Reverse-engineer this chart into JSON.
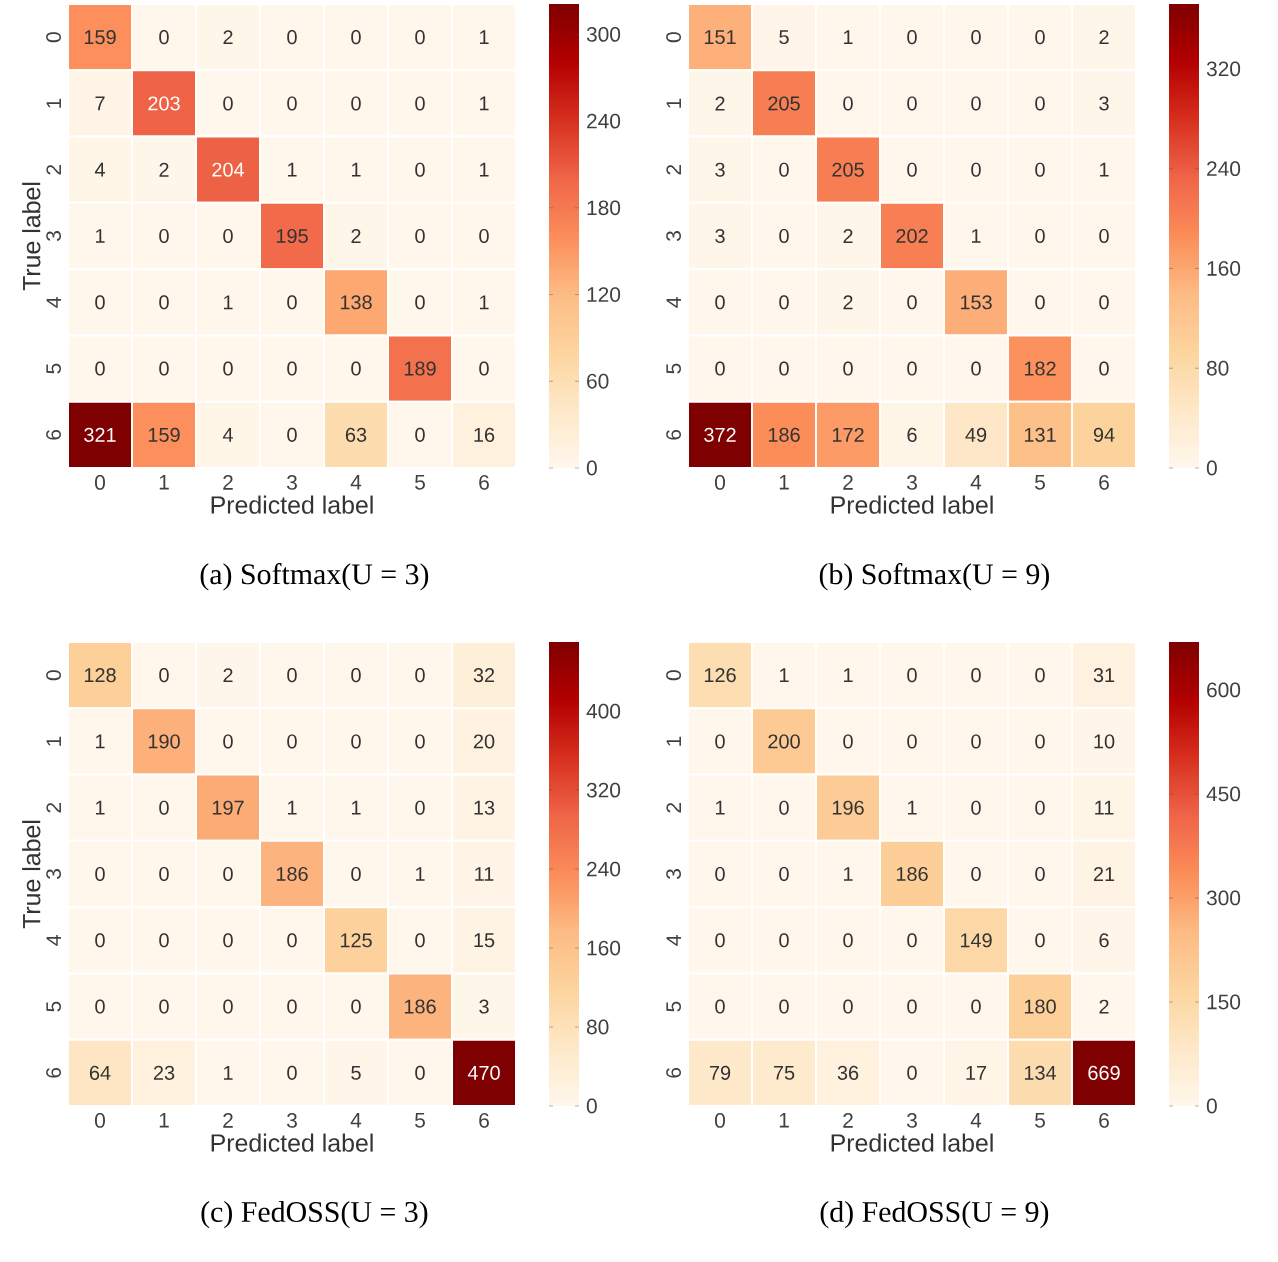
{
  "chart_data": [
    {
      "type": "heatmap",
      "title": "(a)  Softmax(U = 3)",
      "xlabel": "Predicted label",
      "ylabel": "True label",
      "categories": [
        "0",
        "1",
        "2",
        "3",
        "4",
        "5",
        "6"
      ],
      "y_categories": [
        "0",
        "1",
        "2",
        "3",
        "4",
        "5",
        "6"
      ],
      "cells": [
        [
          159,
          0,
          2,
          0,
          0,
          0,
          1
        ],
        [
          7,
          203,
          0,
          0,
          0,
          0,
          1
        ],
        [
          4,
          2,
          204,
          1,
          1,
          0,
          1
        ],
        [
          1,
          0,
          0,
          195,
          2,
          0,
          0
        ],
        [
          0,
          0,
          1,
          0,
          138,
          0,
          1
        ],
        [
          0,
          0,
          0,
          0,
          0,
          189,
          0
        ],
        [
          321,
          159,
          4,
          0,
          63,
          0,
          16
        ]
      ],
      "clim": [
        0,
        321
      ],
      "cticks": [
        0,
        60,
        120,
        180,
        240,
        300
      ],
      "data_labels": true
    },
    {
      "type": "heatmap",
      "title": "(b)  Softmax(U = 9)",
      "xlabel": "Predicted label",
      "categories": [
        "0",
        "1",
        "2",
        "3",
        "4",
        "5",
        "6"
      ],
      "y_categories": [
        "0",
        "1",
        "2",
        "3",
        "4",
        "5",
        "6"
      ],
      "cells": [
        [
          151,
          5,
          1,
          0,
          0,
          0,
          2
        ],
        [
          2,
          205,
          0,
          0,
          0,
          0,
          3
        ],
        [
          3,
          0,
          205,
          0,
          0,
          0,
          1
        ],
        [
          3,
          0,
          2,
          202,
          1,
          0,
          0
        ],
        [
          0,
          0,
          2,
          0,
          153,
          0,
          0
        ],
        [
          0,
          0,
          0,
          0,
          0,
          182,
          0
        ],
        [
          372,
          186,
          172,
          6,
          49,
          131,
          94
        ]
      ],
      "clim": [
        0,
        372
      ],
      "cticks": [
        0,
        80,
        160,
        240,
        320
      ],
      "data_labels": true
    },
    {
      "type": "heatmap",
      "title": "(c)  FedOSS(U = 3)",
      "xlabel": "Predicted label",
      "ylabel": "True label",
      "categories": [
        "0",
        "1",
        "2",
        "3",
        "4",
        "5",
        "6"
      ],
      "y_categories": [
        "0",
        "1",
        "2",
        "3",
        "4",
        "5",
        "6"
      ],
      "cells": [
        [
          128,
          0,
          2,
          0,
          0,
          0,
          32
        ],
        [
          1,
          190,
          0,
          0,
          0,
          0,
          20
        ],
        [
          1,
          0,
          197,
          1,
          1,
          0,
          13
        ],
        [
          0,
          0,
          0,
          186,
          0,
          1,
          11
        ],
        [
          0,
          0,
          0,
          0,
          125,
          0,
          15
        ],
        [
          0,
          0,
          0,
          0,
          0,
          186,
          3
        ],
        [
          64,
          23,
          1,
          0,
          5,
          0,
          470
        ]
      ],
      "clim": [
        0,
        470
      ],
      "cticks": [
        0,
        80,
        160,
        240,
        320,
        400
      ],
      "data_labels": true
    },
    {
      "type": "heatmap",
      "title": "(d)  FedOSS(U = 9)",
      "xlabel": "Predicted label",
      "categories": [
        "0",
        "1",
        "2",
        "3",
        "4",
        "5",
        "6"
      ],
      "y_categories": [
        "0",
        "1",
        "2",
        "3",
        "4",
        "5",
        "6"
      ],
      "cells": [
        [
          126,
          1,
          1,
          0,
          0,
          0,
          31
        ],
        [
          0,
          200,
          0,
          0,
          0,
          0,
          10
        ],
        [
          1,
          0,
          196,
          1,
          0,
          0,
          11
        ],
        [
          0,
          0,
          1,
          186,
          0,
          0,
          21
        ],
        [
          0,
          0,
          0,
          0,
          149,
          0,
          6
        ],
        [
          0,
          0,
          0,
          0,
          0,
          180,
          2
        ],
        [
          79,
          75,
          36,
          0,
          17,
          134,
          669
        ]
      ],
      "clim": [
        0,
        669
      ],
      "cticks": [
        0,
        150,
        300,
        450,
        600
      ],
      "data_labels": true
    }
  ]
}
